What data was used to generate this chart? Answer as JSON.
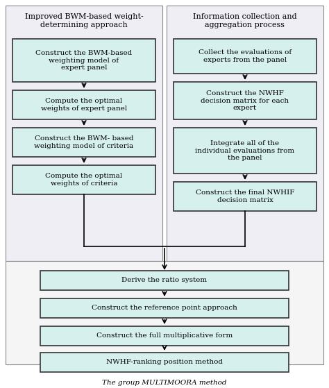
{
  "bg_color": "#ffffff",
  "box_fill": "#d6f0ed",
  "box_edge": "#333333",
  "left_section_fill": "#f0eef5",
  "right_section_fill": "#f0eef5",
  "bottom_section_fill": "#f5f5f5",
  "left_header": "Improved BWM-based weight-\ndetermining approach",
  "right_header": "Information collection and\naggregation process",
  "left_boxes": [
    "Construct the BWM-based\nweighting model of\nexpert panel",
    "Compute the optimal\nweights of expert panel",
    "Construct the BWM- based\nweighting model of criteria",
    "Compute the optimal\nweights of criteria"
  ],
  "right_boxes": [
    "Collect the evaluations of\nexperts from the panel",
    "Construct the NWHF\ndecision matrix for each\nexpert",
    "Integrate all of the\nindividual evaluations from\nthe panel",
    "Construct the final NWHIF\ndecision matrix"
  ],
  "bottom_boxes": [
    "Derive the ratio system",
    "Construct the reference point approach",
    "Construct the full multiplicative form",
    "NWHF-ranking position method"
  ],
  "bottom_label": "The group MULTIMOORA method",
  "fontsize": 7.5,
  "header_fontsize": 8.0
}
